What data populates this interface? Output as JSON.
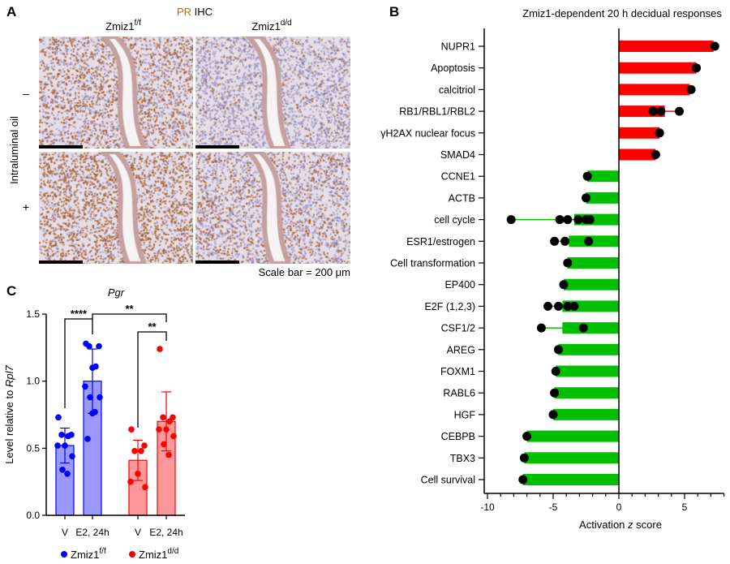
{
  "panel_a": {
    "label": "A",
    "title_pr": "PR",
    "title_ihc": "IHC",
    "title_pr_color": "#a0703a",
    "col1_base": "Zmiz1",
    "col1_sup": "f/f",
    "col2_base": "Zmiz1",
    "col2_sup": "d/d",
    "row_axis_label": "Intraluminal oil",
    "row1_label": "–",
    "row2_label": "+",
    "scale_note": "Scale bar = 200 μm"
  },
  "chart_data": [
    {
      "type": "bar",
      "panel_label": "B",
      "orientation": "horizontal",
      "title": "Zmiz1-dependent 20 h decidual responses",
      "xlabel_pre": "Activation ",
      "xlabel_italic": "z",
      "xlabel_post": " score",
      "xlim": [
        -10,
        8
      ],
      "xticks": [
        -10,
        -5,
        0,
        5
      ],
      "positive_color": "#ff0000",
      "negative_color": "#00c000",
      "categories": [
        "NUPR1",
        "Apoptosis",
        "calcitriol",
        "RB1/RBL1/RBL2",
        "γH2AX nuclear focus",
        "SMAD4",
        "CCNE1",
        "ACTB",
        "cell cycle",
        "ESR1/estrogen",
        "Cell transformation",
        "EP400",
        "E2F (1,2,3)",
        "CSF1/2",
        "AREG",
        "FOXM1",
        "RABL6",
        "HGF",
        "CEBPB",
        "TBX3",
        "Cell survival"
      ],
      "values": [
        7.2,
        5.9,
        5.4,
        3.5,
        3.1,
        2.8,
        -2.4,
        -2.5,
        -3.4,
        -3.8,
        -3.9,
        -4.2,
        -4.3,
        -4.3,
        -4.6,
        -4.8,
        -4.9,
        -5.0,
        -7.0,
        -7.2,
        -7.3
      ],
      "points": [
        [
          7.3
        ],
        [
          5.9
        ],
        [
          5.5
        ],
        [
          2.6,
          3.2,
          4.6
        ],
        [
          3.1
        ],
        [
          2.8
        ],
        [
          -2.4
        ],
        [
          -2.5
        ],
        [
          -8.2,
          -4.5,
          -3.9,
          -3.1,
          -2.5,
          -2.2
        ],
        [
          -4.9,
          -4.1,
          -2.3
        ],
        [
          -3.9
        ],
        [
          -4.2
        ],
        [
          -5.4,
          -4.6,
          -3.9,
          -3.4
        ],
        [
          -5.9,
          -2.7
        ],
        [
          -4.6
        ],
        [
          -4.8
        ],
        [
          -4.9
        ],
        [
          -5.0
        ],
        [
          -7.0
        ],
        [
          -7.2
        ],
        [
          -7.3
        ]
      ]
    },
    {
      "type": "bar",
      "panel_label": "C",
      "title": "Pgr",
      "ylabel_pre": "Level relative to ",
      "ylabel_italic": "Rpl7",
      "ylim": [
        0,
        1.5
      ],
      "yticks": [
        "0.0",
        "0.5",
        "1.0",
        "1.5"
      ],
      "categories": [
        "V",
        "E2, 24h",
        "V",
        "E2, 24h"
      ],
      "series": [
        {
          "name_base": "Zmiz1",
          "name_sup": "f/f",
          "color": "#0000ff",
          "fill": "#9999ff",
          "means": [
            0.52,
            1.0
          ],
          "sd": [
            0.13,
            0.24
          ],
          "points": [
            [
              0.73,
              0.6,
              0.6,
              0.59,
              0.52,
              0.52,
              0.44,
              0.34,
              0.31
            ],
            [
              1.28,
              1.26,
              1.26,
              1.11,
              1.1,
              0.96,
              0.88,
              0.88,
              0.77,
              0.76,
              0.57
            ]
          ]
        },
        {
          "name_base": "Zmiz1",
          "name_sup": "d/d",
          "color": "#ff0000",
          "fill": "#ff9999",
          "means": [
            0.41,
            0.7
          ],
          "sd": [
            0.15,
            0.22
          ],
          "points": [
            [
              0.64,
              0.52,
              0.48,
              0.48,
              0.31,
              0.25,
              0.21
            ],
            [
              1.24,
              0.73,
              0.73,
              0.7,
              0.64,
              0.64,
              0.59,
              0.53,
              0.45
            ]
          ]
        }
      ],
      "significance": [
        {
          "between": [
            "V f/f",
            "E2 f/f"
          ],
          "label": "****"
        },
        {
          "between": [
            "E2 f/f",
            "E2 d/d"
          ],
          "label": "**"
        },
        {
          "between": [
            "V d/d",
            "E2 d/d"
          ],
          "label": "**"
        }
      ]
    }
  ]
}
